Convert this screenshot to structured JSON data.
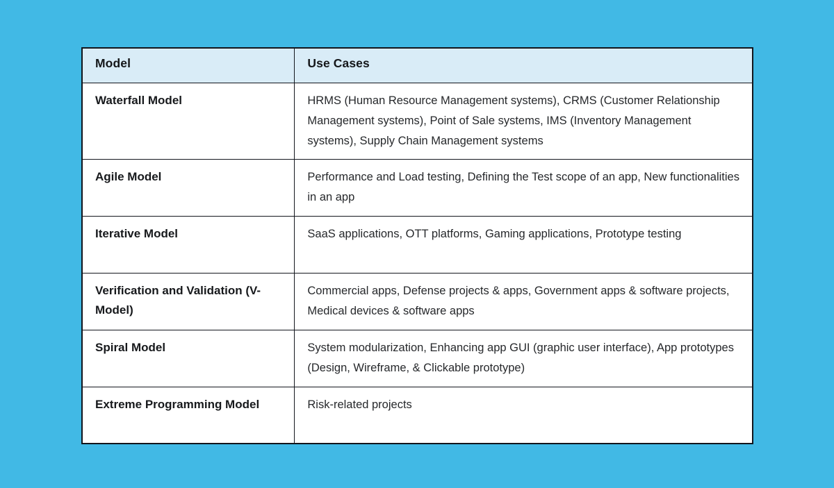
{
  "colors": {
    "page_background": "#41b9e5",
    "header_background": "#d9ecf7",
    "border": "#12151c",
    "cell_background": "#ffffff",
    "heading_text": "#15171a",
    "body_text": "#26282b"
  },
  "table": {
    "headers": [
      "Model",
      "Use Cases"
    ],
    "rows": [
      {
        "model": "Waterfall Model",
        "use_cases": "HRMS (Human Resource Management systems), CRMS (Customer Relationship Management systems), Point of Sale systems, IMS (Inventory Management systems), Supply Chain Management systems"
      },
      {
        "model": "Agile Model",
        "use_cases": "Performance and Load testing, Defining the Test scope of an app, New functionalities in an app"
      },
      {
        "model": "Iterative Model",
        "use_cases": "SaaS applications, OTT platforms, Gaming applications, Prototype testing"
      },
      {
        "model": "Verification and Validation (V-Model)",
        "use_cases": "Commercial apps, Defense projects & apps, Government apps & software projects, Medical devices & software apps"
      },
      {
        "model": "Spiral Model",
        "use_cases": "System modularization, Enhancing app GUI (graphic user interface), App prototypes (Design, Wireframe, & Clickable prototype)"
      },
      {
        "model": "Extreme Programming Model",
        "use_cases": "Risk-related projects"
      }
    ]
  }
}
